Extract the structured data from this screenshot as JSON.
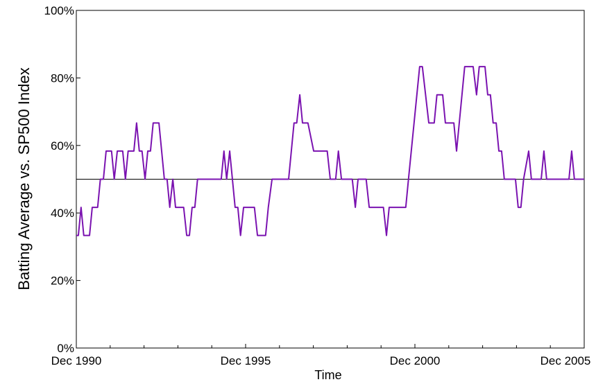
{
  "chart_data": {
    "type": "line",
    "x_label": "Time",
    "y_label": "Batting Average vs. SP500 Index",
    "xlim": [
      1990.92,
      2005.92
    ],
    "xticks": [
      {
        "value": 1990.92,
        "label": "Dec 1990"
      },
      {
        "value": 1995.92,
        "label": "Dec 1995"
      },
      {
        "value": 2000.92,
        "label": "Dec 2000"
      },
      {
        "value": 2005.92,
        "label": "Dec 2005"
      }
    ],
    "xminorticks": [
      1991.92,
      1992.92,
      1993.92,
      1994.92,
      1996.92,
      1997.92,
      1998.92,
      1999.92,
      2001.92,
      2002.92,
      2003.92,
      2004.92
    ],
    "ylim": [
      0,
      100
    ],
    "yticks": [
      {
        "value": 0,
        "label": "0%"
      },
      {
        "value": 20,
        "label": "20%"
      },
      {
        "value": 40,
        "label": "40%"
      },
      {
        "value": 60,
        "label": "60%"
      },
      {
        "value": 80,
        "label": "80%"
      },
      {
        "value": 100,
        "label": "100%"
      }
    ],
    "hline": 50,
    "x": [
      1990.92,
      1990.98,
      1991.06,
      1991.14,
      1991.31,
      1991.39,
      1991.55,
      1991.63,
      1991.72,
      1991.8,
      1991.96,
      1992.04,
      1992.13,
      1992.29,
      1992.37,
      1992.45,
      1992.62,
      1992.7,
      1992.78,
      1992.86,
      1992.95,
      1993.03,
      1993.11,
      1993.19,
      1993.36,
      1993.52,
      1993.6,
      1993.68,
      1993.77,
      1993.85,
      1994.09,
      1994.18,
      1994.26,
      1994.34,
      1994.42,
      1994.5,
      1995.2,
      1995.28,
      1995.36,
      1995.45,
      1995.61,
      1995.69,
      1995.77,
      1995.86,
      1996.18,
      1996.27,
      1996.51,
      1996.59,
      1996.7,
      1997.19,
      1997.27,
      1997.35,
      1997.43,
      1997.52,
      1997.6,
      1997.76,
      1997.93,
      1998.33,
      1998.42,
      1998.58,
      1998.66,
      1998.75,
      1999.07,
      1999.16,
      1999.24,
      1999.48,
      1999.57,
      1999.99,
      2000.08,
      2000.16,
      2000.65,
      2000.73,
      2001.06,
      2001.14,
      2001.33,
      2001.49,
      2001.57,
      2001.74,
      2001.82,
      2002.07,
      2002.15,
      2002.23,
      2002.39,
      2002.64,
      2002.74,
      2002.82,
      2002.99,
      2003.07,
      2003.15,
      2003.23,
      2003.32,
      2003.4,
      2003.48,
      2003.56,
      2003.89,
      2003.97,
      2004.05,
      2004.13,
      2004.28,
      2004.36,
      2004.65,
      2004.73,
      2004.81,
      2005.47,
      2005.55,
      2005.63,
      2005.92
    ],
    "series": [
      {
        "color": "#7a12b0",
        "values": [
          33.33,
          33.33,
          41.67,
          33.33,
          33.33,
          41.67,
          41.67,
          50,
          50,
          58.33,
          58.33,
          50,
          58.33,
          58.33,
          50,
          58.33,
          58.33,
          66.67,
          58.33,
          58.33,
          50,
          58.33,
          58.33,
          66.67,
          66.67,
          50,
          50,
          41.67,
          50,
          41.67,
          41.67,
          33.33,
          33.33,
          41.67,
          41.67,
          50,
          50,
          58.33,
          50,
          58.33,
          41.67,
          41.67,
          33.33,
          41.67,
          41.67,
          33.33,
          33.33,
          41.67,
          50,
          50,
          58.33,
          66.67,
          66.67,
          75,
          66.67,
          66.67,
          58.33,
          58.33,
          50,
          50,
          58.33,
          50,
          50,
          41.67,
          50,
          50,
          41.67,
          41.67,
          33.33,
          41.67,
          41.67,
          50,
          83.33,
          83.33,
          66.67,
          66.67,
          75,
          75,
          66.67,
          66.67,
          58.33,
          66.67,
          83.33,
          83.33,
          75,
          83.33,
          83.33,
          75,
          75,
          66.67,
          66.67,
          58.33,
          58.33,
          50,
          50,
          41.67,
          41.67,
          50,
          58.33,
          50,
          50,
          58.33,
          50,
          50,
          58.33,
          50,
          50
        ]
      }
    ]
  }
}
